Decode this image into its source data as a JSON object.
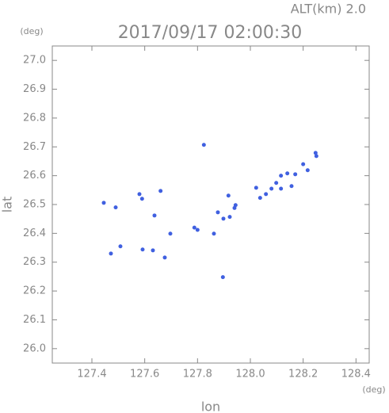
{
  "chart_data": {
    "type": "scatter",
    "title": "2017/09/17 02:00:30",
    "subtitle": "ALT(km) 2.0",
    "x_label": "lon",
    "y_label": "lat",
    "x_unit": "(deg)",
    "y_unit": "(deg)",
    "color": "#4060e0",
    "xlim": [
      127.25,
      128.45
    ],
    "ylim": [
      25.95,
      27.05
    ],
    "xticks": [
      127.4,
      127.6,
      127.8,
      {
        "value": 128,
        "label": "128.0"
      },
      128.2,
      128.4
    ],
    "yticks": [
      {
        "value": 26,
        "label": "26.0"
      },
      26.1,
      26.2,
      26.3,
      26.4,
      26.5,
      26.6,
      26.7,
      26.8,
      26.9,
      {
        "value": 27,
        "label": "27.0"
      }
    ],
    "x": [
      127.824,
      127.445,
      127.49,
      127.58,
      127.59,
      127.66,
      127.637,
      127.472,
      127.508,
      127.592,
      127.631,
      127.676,
      127.697,
      127.788,
      127.8,
      127.862,
      127.877,
      127.898,
      127.922,
      127.944,
      127.94,
      127.917,
      127.896,
      128.022,
      128.037,
      128.059,
      128.08,
      128.098,
      128.116,
      128.14,
      128.17,
      128.156,
      128.116,
      128.2,
      128.217,
      128.25,
      128.247
    ],
    "y": [
      26.707,
      26.506,
      26.49,
      26.536,
      26.52,
      26.547,
      26.462,
      26.33,
      26.355,
      26.344,
      26.341,
      26.316,
      26.399,
      26.42,
      26.412,
      26.399,
      26.473,
      26.451,
      26.457,
      26.498,
      26.488,
      26.531,
      26.248,
      26.558,
      26.523,
      26.536,
      26.555,
      26.575,
      26.6,
      26.608,
      26.605,
      26.564,
      26.555,
      26.64,
      26.619,
      26.668,
      26.679
    ]
  }
}
